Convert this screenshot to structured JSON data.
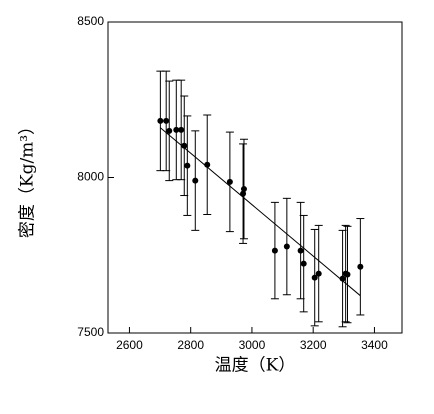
{
  "chart_data": {
    "type": "scatter",
    "x_label": "温度（K）",
    "y_label": "密度（Kg/m³）",
    "x": [
      2701,
      2720,
      2730,
      2753,
      2769,
      2779,
      2789,
      2815,
      2854,
      2928,
      2971,
      2974,
      3075,
      3114,
      3159,
      3169,
      3205,
      3218,
      3296,
      3306,
      3312,
      3354
    ],
    "values": [
      8182,
      8182,
      8150,
      8153,
      8153,
      8102,
      8038,
      7990,
      8041,
      7986,
      7948,
      7963,
      7765,
      7778,
      7765,
      7723,
      7678,
      7691,
      7675,
      7691,
      7688,
      7713
    ],
    "errors": [
      160,
      160,
      160,
      160,
      160,
      160,
      160,
      160,
      160,
      160,
      160,
      160,
      155,
      155,
      155,
      155,
      155,
      155,
      155,
      155,
      155,
      155
    ],
    "fit": {
      "x": [
        2701,
        3354
      ],
      "y": [
        8160,
        7620
      ]
    },
    "color": "#000000",
    "xlim": [
      2530,
      3490
    ],
    "ylim": [
      7500,
      8500
    ],
    "xticks": [
      2600,
      2800,
      3000,
      3200,
      3400
    ],
    "yticks": [
      7500,
      8000,
      8500
    ]
  }
}
